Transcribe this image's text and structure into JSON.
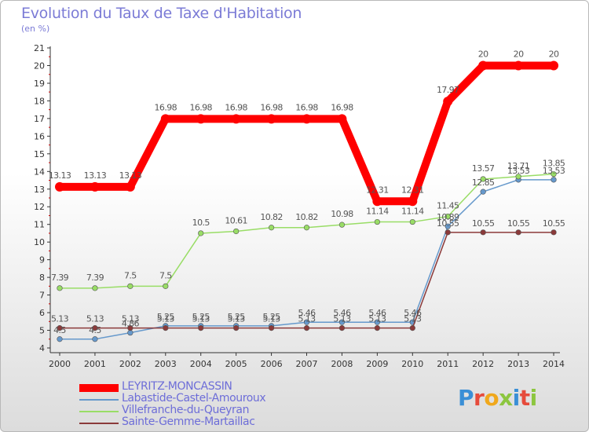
{
  "title": "Evolution du Taux de Taxe d'Habitation",
  "subtitle": "(en %)",
  "logo": {
    "letters": [
      "P",
      "r",
      "o",
      "x",
      "i",
      "t",
      "i"
    ],
    "colors": [
      "#3a8fd6",
      "#e64b3b",
      "#f0a81c",
      "#8cc63f",
      "#3a8fd6",
      "#e64b3b",
      "#8cc63f"
    ]
  },
  "chart_data": {
    "type": "line",
    "x": [
      "2000",
      "2001",
      "2002",
      "2003",
      "2004",
      "2005",
      "2006",
      "2007",
      "2008",
      "2009",
      "2010",
      "2011",
      "2012",
      "2013",
      "2014"
    ],
    "ylim": [
      4,
      21
    ],
    "yticks": [
      "4",
      "5",
      "6",
      "7",
      "8",
      "9",
      "10",
      "11",
      "12",
      "13",
      "14",
      "15",
      "16",
      "17",
      "18",
      "19",
      "20",
      "21"
    ],
    "grid": false,
    "legend_position": "bottom-left",
    "series": [
      {
        "name": "LEYRITZ-MONCASSIN",
        "color": "#ff0000",
        "values": [
          13.13,
          13.13,
          13.13,
          16.98,
          16.98,
          16.98,
          16.98,
          16.98,
          16.98,
          12.31,
          12.31,
          17.97,
          20,
          20,
          20
        ],
        "labels": [
          "13.13",
          "13.13",
          "13.13",
          "16.98",
          "16.98",
          "16.98",
          "16.98",
          "16.98",
          "16.98",
          "12.31",
          "12.31",
          "17.97",
          "20",
          "20",
          "20"
        ]
      },
      {
        "name": "Labastide-Castel-Amouroux",
        "color": "#6699cc",
        "values": [
          4.5,
          4.5,
          4.86,
          5.25,
          5.25,
          5.25,
          5.25,
          5.46,
          5.46,
          5.46,
          5.46,
          10.89,
          12.85,
          13.53,
          13.53
        ],
        "labels": [
          "4.5",
          "4.5",
          "4.86",
          "5.25",
          "5.25",
          "5.25",
          "5.25",
          "5.46",
          "5.46",
          "5.46",
          "5.46",
          "10.89",
          "12.85",
          "13.53",
          "13.53"
        ]
      },
      {
        "name": "Villefranche-du-Queyran",
        "color": "#99dd66",
        "values": [
          7.39,
          7.39,
          7.5,
          7.5,
          10.5,
          10.61,
          10.82,
          10.82,
          10.98,
          11.14,
          11.14,
          11.45,
          13.57,
          13.71,
          13.85
        ],
        "labels": [
          "7.39",
          "7.39",
          "7.5",
          "7.5",
          "10.5",
          "10.61",
          "10.82",
          "10.82",
          "10.98",
          "11.14",
          "11.14",
          "11.45",
          "13.57",
          "13.71",
          "13.85"
        ]
      },
      {
        "name": "Sainte-Gemme-Martaillac",
        "color": "#8b3a3a",
        "values": [
          5.13,
          5.13,
          5.13,
          5.13,
          5.13,
          5.13,
          5.13,
          5.13,
          5.13,
          5.13,
          5.13,
          10.55,
          10.55,
          10.55,
          10.55
        ],
        "labels": [
          "5.13",
          "5.13",
          "5.13",
          "5.13",
          "5.13",
          "5.13",
          "5.13",
          "5.13",
          "5.13",
          "5.13",
          "5.13",
          "10.55",
          "10.55",
          "10.55",
          "10.55"
        ]
      }
    ]
  }
}
